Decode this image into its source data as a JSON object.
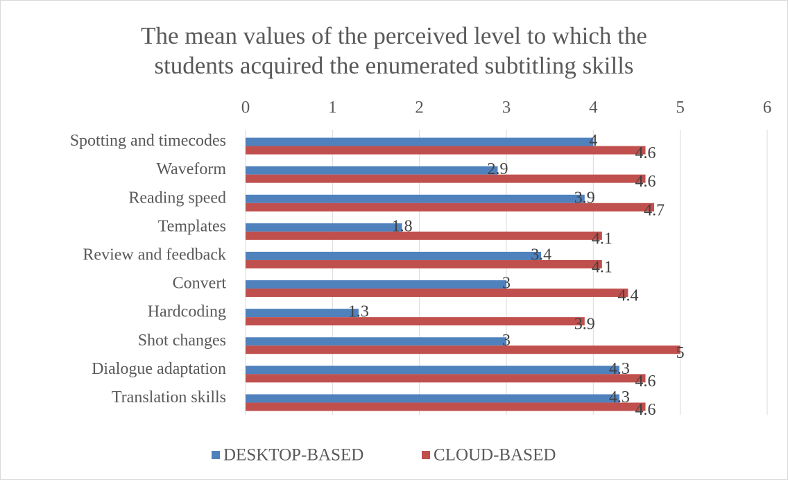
{
  "chart_data": {
    "type": "bar",
    "orientation": "horizontal",
    "title": "The mean values of the perceived level to which the students acquired the enumerated subtitling skills",
    "categories": [
      "Spotting and timecodes",
      "Waveform",
      "Reading speed",
      "Templates",
      "Review and feedback",
      "Convert",
      "Hardcoding",
      "Shot changes",
      "Dialogue adaptation",
      "Translation skills"
    ],
    "series": [
      {
        "name": "DESKTOP-BASED",
        "color": "#4f81bd",
        "values": [
          4,
          2.9,
          3.9,
          1.8,
          3.4,
          3,
          1.3,
          3,
          4.3,
          4.3
        ]
      },
      {
        "name": "CLOUD-BASED",
        "color": "#c0504d",
        "values": [
          4.6,
          4.6,
          4.7,
          4.1,
          4.1,
          4.4,
          3.9,
          5,
          4.6,
          4.6
        ]
      }
    ],
    "xlim": [
      0,
      6
    ],
    "xticks": [
      0,
      1,
      2,
      3,
      4,
      5,
      6
    ],
    "grid": true,
    "legend": "bottom"
  }
}
